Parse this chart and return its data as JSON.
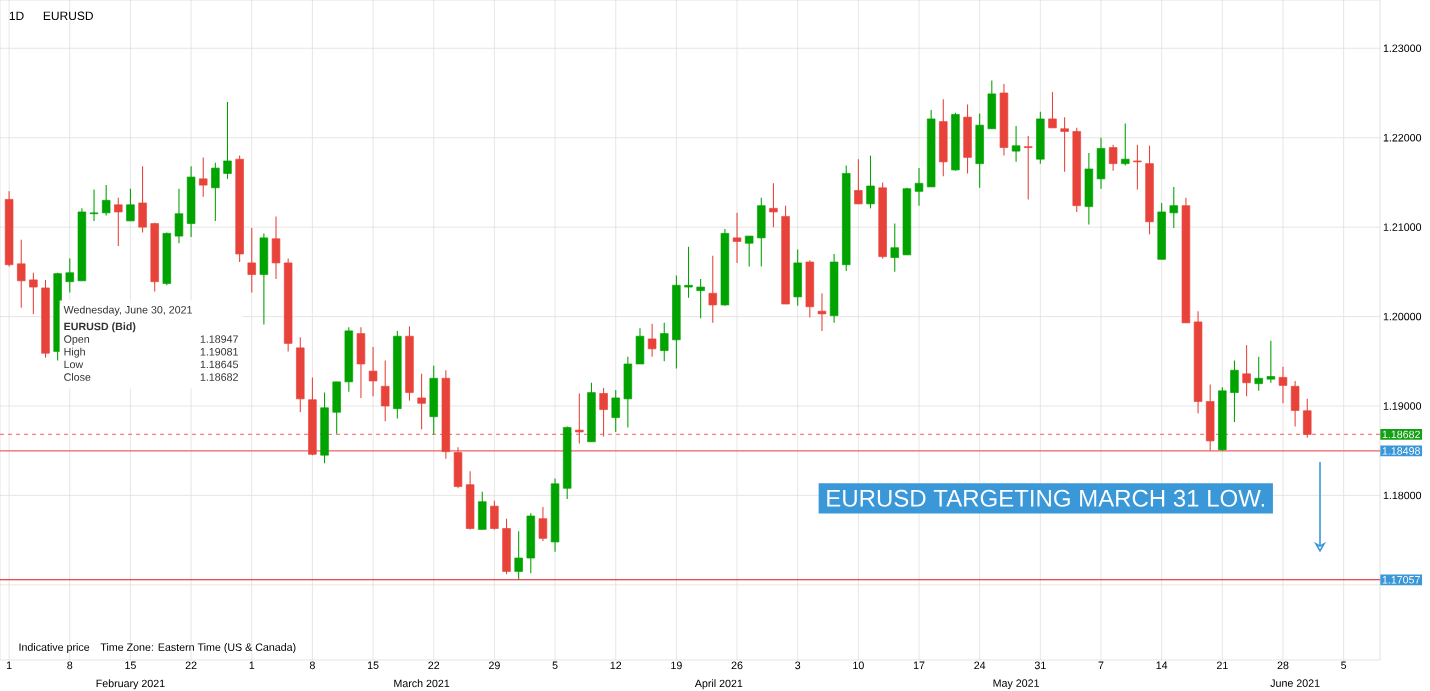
{
  "chart_data": {
    "type": "candlestick",
    "title": "EURUSD",
    "categories": [
      "1",
      null,
      null,
      null,
      null,
      "8",
      null,
      null,
      null,
      null,
      "15",
      null,
      null,
      null,
      null,
      "22",
      null,
      null,
      null,
      null,
      "1",
      null,
      null,
      null,
      null,
      "8",
      null,
      null,
      null,
      null,
      "15",
      null,
      null,
      null,
      null,
      "22",
      null,
      null,
      null,
      null,
      "29",
      null,
      null,
      null,
      null,
      "5",
      null,
      null,
      null,
      null,
      "12",
      null,
      null,
      null,
      null,
      "19",
      null,
      null,
      null,
      null,
      "26",
      null,
      null,
      null,
      null,
      "3",
      null,
      null,
      null,
      null,
      "10",
      null,
      null,
      null,
      null,
      "17",
      null,
      null,
      null,
      null,
      "24",
      null,
      null,
      null,
      null,
      "31",
      null,
      null,
      null,
      null,
      "7",
      null,
      null,
      null,
      null,
      "14",
      null,
      null,
      null,
      null,
      "21",
      null,
      null,
      null,
      null,
      "28",
      null,
      null,
      null,
      null,
      "5"
    ],
    "ohlc": [
      [
        1.2131,
        1.214,
        1.2056,
        1.2058
      ],
      [
        1.2059,
        1.2086,
        1.201,
        1.204
      ],
      [
        1.2041,
        1.2049,
        1.2003,
        1.2033
      ],
      [
        1.2032,
        1.2041,
        1.1954,
        1.1959
      ],
      [
        1.1961,
        1.2049,
        1.1951,
        1.2048
      ],
      [
        1.2039,
        1.2065,
        1.2027,
        1.2049
      ],
      [
        1.204,
        1.2121,
        1.204,
        1.2117
      ],
      [
        1.2115,
        1.2142,
        1.2107,
        1.2116
      ],
      [
        1.2116,
        1.2147,
        1.2113,
        1.213
      ],
      [
        1.2125,
        1.2133,
        1.2079,
        1.2117
      ],
      [
        1.2107,
        1.2143,
        1.2107,
        1.2125
      ],
      [
        1.2127,
        1.2168,
        1.2094,
        1.21
      ],
      [
        1.2104,
        1.2105,
        1.2028,
        1.2039
      ],
      [
        1.2037,
        1.2094,
        1.2035,
        1.2093
      ],
      [
        1.209,
        1.2143,
        1.2082,
        1.2115
      ],
      [
        1.2104,
        1.2168,
        1.2089,
        1.2156
      ],
      [
        1.2154,
        1.2178,
        1.2134,
        1.2147
      ],
      [
        1.2144,
        1.2172,
        1.2107,
        1.2166
      ],
      [
        1.216,
        1.224,
        1.2154,
        1.2174
      ],
      [
        1.2176,
        1.218,
        1.2061,
        1.207
      ],
      [
        1.206,
        1.2099,
        1.2027,
        1.2047
      ],
      [
        1.2047,
        1.2093,
        1.1991,
        1.2088
      ],
      [
        1.2087,
        1.2112,
        1.2042,
        1.206
      ],
      [
        1.206,
        1.2065,
        1.1961,
        1.197
      ],
      [
        1.1965,
        1.1977,
        1.1893,
        1.1908
      ],
      [
        1.1907,
        1.1932,
        1.1845,
        1.1846
      ],
      [
        1.1845,
        1.1915,
        1.1836,
        1.1898
      ],
      [
        1.1893,
        1.1927,
        1.1869,
        1.1927
      ],
      [
        1.1927,
        1.1988,
        1.1916,
        1.1984
      ],
      [
        1.1981,
        1.1988,
        1.1909,
        1.1947
      ],
      [
        1.1939,
        1.1966,
        1.1911,
        1.1928
      ],
      [
        1.1922,
        1.1951,
        1.1883,
        1.19
      ],
      [
        1.1897,
        1.1984,
        1.1886,
        1.1978
      ],
      [
        1.1978,
        1.1989,
        1.1906,
        1.1915
      ],
      [
        1.1909,
        1.1936,
        1.1874,
        1.1903
      ],
      [
        1.1888,
        1.1945,
        1.1868,
        1.1931
      ],
      [
        1.1931,
        1.194,
        1.1841,
        1.1849
      ],
      [
        1.1848,
        1.1854,
        1.1808,
        1.181
      ],
      [
        1.1812,
        1.1827,
        1.1762,
        1.1763
      ],
      [
        1.1762,
        1.1804,
        1.1762,
        1.1793
      ],
      [
        1.1788,
        1.1794,
        1.1762,
        1.1763
      ],
      [
        1.1763,
        1.1774,
        1.1712,
        1.1715
      ],
      [
        1.1715,
        1.176,
        1.1706,
        1.173
      ],
      [
        1.173,
        1.178,
        1.1713,
        1.1777
      ],
      [
        1.1774,
        1.1787,
        1.1749,
        1.1752
      ],
      [
        1.1748,
        1.1819,
        1.1737,
        1.1813
      ],
      [
        1.1808,
        1.1877,
        1.1796,
        1.1876
      ],
      [
        1.1873,
        1.1914,
        1.1858,
        1.1871
      ],
      [
        1.186,
        1.1926,
        1.186,
        1.1915
      ],
      [
        1.1914,
        1.192,
        1.1866,
        1.1896
      ],
      [
        1.1887,
        1.1918,
        1.1871,
        1.1909
      ],
      [
        1.1908,
        1.1955,
        1.1876,
        1.1947
      ],
      [
        1.1947,
        1.1987,
        1.1947,
        1.1978
      ],
      [
        1.1975,
        1.1992,
        1.1955,
        1.1964
      ],
      [
        1.1962,
        1.1993,
        1.195,
        1.1981
      ],
      [
        1.1974,
        1.2046,
        1.1942,
        1.2035
      ],
      [
        1.2033,
        1.2078,
        1.2021,
        1.2035
      ],
      [
        1.2029,
        1.2042,
        1.1998,
        1.2033
      ],
      [
        1.2026,
        1.2068,
        1.1993,
        1.2013
      ],
      [
        1.2013,
        1.2098,
        1.2012,
        1.2093
      ],
      [
        1.2088,
        1.2116,
        1.206,
        1.2084
      ],
      [
        1.2082,
        1.209,
        1.2056,
        1.209
      ],
      [
        1.2088,
        1.2133,
        1.2056,
        1.2124
      ],
      [
        1.2121,
        1.2149,
        1.21,
        1.2117
      ],
      [
        1.2112,
        1.2124,
        1.2014,
        1.2014
      ],
      [
        1.2022,
        1.2075,
        1.2012,
        1.206
      ],
      [
        1.2061,
        1.2063,
        1.1999,
        1.2011
      ],
      [
        1.2006,
        1.2026,
        1.1984,
        1.2003
      ],
      [
        1.2001,
        1.207,
        1.1993,
        1.2061
      ],
      [
        1.2058,
        1.2169,
        1.2051,
        1.216
      ],
      [
        1.2141,
        1.2176,
        1.2126,
        1.2126
      ],
      [
        1.2126,
        1.218,
        1.2121,
        1.2146
      ],
      [
        1.2144,
        1.215,
        1.2065,
        1.2067
      ],
      [
        1.2066,
        1.2104,
        1.205,
        1.2077
      ],
      [
        1.2069,
        1.2144,
        1.2069,
        1.2143
      ],
      [
        1.214,
        1.2166,
        1.2124,
        1.2149
      ],
      [
        1.2145,
        1.2231,
        1.2145,
        1.2221
      ],
      [
        1.2218,
        1.2243,
        1.2157,
        1.2173
      ],
      [
        1.2164,
        1.2228,
        1.2163,
        1.2226
      ],
      [
        1.2223,
        1.2237,
        1.216,
        1.2178
      ],
      [
        1.2171,
        1.2227,
        1.2144,
        1.2214
      ],
      [
        1.221,
        1.2264,
        1.221,
        1.2249
      ],
      [
        1.225,
        1.226,
        1.218,
        1.2189
      ],
      [
        1.2185,
        1.2213,
        1.2173,
        1.2191
      ],
      [
        1.219,
        1.2202,
        1.2131,
        1.2189
      ],
      [
        1.2176,
        1.2229,
        1.2171,
        1.2221
      ],
      [
        1.2221,
        1.2251,
        1.2211,
        1.2211
      ],
      [
        1.221,
        1.2223,
        1.2162,
        1.2207
      ],
      [
        1.2207,
        1.2211,
        1.2117,
        1.2124
      ],
      [
        1.2123,
        1.2183,
        1.2103,
        1.2165
      ],
      [
        1.2154,
        1.22,
        1.2143,
        1.2188
      ],
      [
        1.2189,
        1.2192,
        1.2163,
        1.2171
      ],
      [
        1.2171,
        1.2216,
        1.2169,
        1.2176
      ],
      [
        1.2174,
        1.2192,
        1.2142,
        1.2173
      ],
      [
        1.2171,
        1.2191,
        1.2092,
        1.2106
      ],
      [
        1.2064,
        1.2127,
        1.2064,
        1.2117
      ],
      [
        1.2116,
        1.2145,
        1.2099,
        1.2124
      ],
      [
        1.2124,
        1.2133,
        1.1993,
        1.1993
      ],
      [
        1.1994,
        1.2006,
        1.1892,
        1.1905
      ],
      [
        1.1905,
        1.1924,
        1.185,
        1.1861
      ],
      [
        1.1851,
        1.1921,
        1.185,
        1.1917
      ],
      [
        1.1915,
        1.1951,
        1.1882,
        1.194
      ],
      [
        1.1936,
        1.1968,
        1.1911,
        1.1926
      ],
      [
        1.1925,
        1.1955,
        1.1917,
        1.1931
      ],
      [
        1.193,
        1.1973,
        1.1926,
        1.1933
      ],
      [
        1.1932,
        1.1944,
        1.1903,
        1.1923
      ],
      [
        1.1922,
        1.1928,
        1.1877,
        1.1895
      ],
      [
        1.18947,
        1.19081,
        1.18645,
        1.18682
      ],
      null,
      null,
      null
    ],
    "colors": [
      "#e8433a",
      "#e8433a",
      "#e8433a",
      "#e8433a",
      "#00a300",
      "#00a300",
      "#00a300",
      "#00a300",
      "#00a300",
      "#e8433a",
      "#00a300",
      "#e8433a",
      "#e8433a",
      "#00a300",
      "#00a300",
      "#00a300",
      "#e8433a",
      "#00a300",
      "#00a300",
      "#e8433a",
      "#e8433a",
      "#00a300",
      "#e8433a",
      "#e8433a",
      "#e8433a",
      "#e8433a",
      "#00a300",
      "#00a300",
      "#00a300",
      "#e8433a",
      "#e8433a",
      "#e8433a",
      "#00a300",
      "#e8433a",
      "#e8433a",
      "#00a300",
      "#e8433a",
      "#e8433a",
      "#e8433a",
      "#00a300",
      "#e8433a",
      "#e8433a",
      "#00a300",
      "#00a300",
      "#e8433a",
      "#00a300",
      "#00a300",
      "#e8433a",
      "#00a300",
      "#e8433a",
      "#00a300",
      "#00a300",
      "#00a300",
      "#e8433a",
      "#00a300",
      "#00a300",
      "#00a300",
      "#00a300",
      "#e8433a",
      "#00a300",
      "#e8433a",
      "#00a300",
      "#00a300",
      "#e8433a",
      "#e8433a",
      "#00a300",
      "#e8433a",
      "#e8433a",
      "#00a300",
      "#00a300",
      "#e8433a",
      "#00a300",
      "#e8433a",
      "#00a300",
      "#00a300",
      "#00a300",
      "#00a300",
      "#e8433a",
      "#00a300",
      "#e8433a",
      "#00a300",
      "#00a300",
      "#e8433a",
      "#00a300",
      "#e8433a",
      "#00a300",
      "#e8433a",
      "#e8433a",
      "#e8433a",
      "#00a300",
      "#00a300",
      "#e8433a",
      "#00a300",
      "#e8433a",
      "#e8433a",
      "#00a300",
      "#00a300",
      "#e8433a",
      "#e8433a",
      "#e8433a",
      "#00a300",
      "#00a300",
      "#e8433a",
      "#00a300",
      "#00a300",
      "#e8433a",
      "#e8433a",
      "#e8433a",
      null,
      null,
      null
    ],
    "ylim": [
      1.1616,
      1.2354
    ],
    "yticks": [
      {
        "value": 1.17,
        "label": null
      },
      {
        "value": 1.18,
        "label": "1.18000"
      },
      {
        "value": 1.19,
        "label": "1.19000"
      },
      {
        "value": 1.2,
        "label": "1.20000"
      },
      {
        "value": 1.21,
        "label": "1.21000"
      },
      {
        "value": 1.22,
        "label": "1.22000"
      },
      {
        "value": 1.23,
        "label": "1.23000"
      }
    ],
    "grid": true,
    "ref_lines": [
      {
        "axis": "y",
        "value": 1.18682,
        "label": "1.18682",
        "color": "#f08080",
        "line_style": "dashed"
      },
      {
        "axis": "y",
        "value": 1.18498,
        "label": "1.18498",
        "color": "#f06060",
        "line_style": "solid"
      },
      {
        "axis": "y",
        "value": 1.17057,
        "label": "1.17057",
        "color": "#e81010",
        "line_style": "solid"
      }
    ],
    "annotations": [
      "1D",
      "Wednesday, June 30, 2021",
      "EURUSD (Bid)",
      "Open",
      "1.18947",
      "High",
      "1.19081",
      "Low",
      "1.18645",
      "Close",
      "1.18682",
      "Indicative price",
      "Time Zone: Eastern Time (US & Canada)",
      "EURUSD TARGETING MARCH 31 LOW.",
      "February 2021",
      "March 2021",
      "April 2021",
      "May 2021",
      "June 2021"
    ]
  }
}
